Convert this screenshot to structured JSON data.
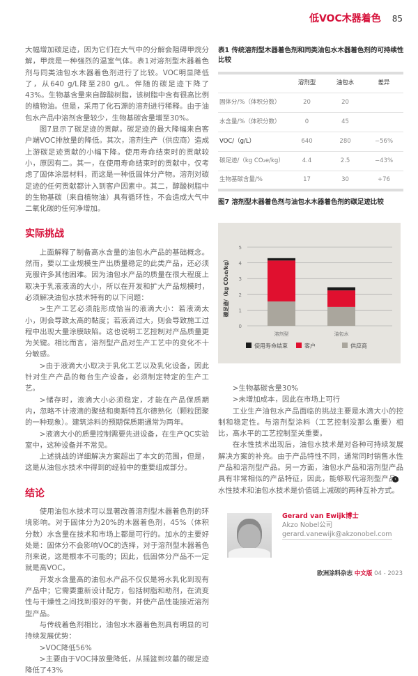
{
  "header": {
    "title": "低VOC木器着色",
    "page": "85"
  },
  "left": {
    "p1": "大幅增加碳足迹，因为它们在大气中的分解会阻碍甲烷分解，甲烷是一种强烈的温室气体。表1对溶剂型木器着色剂与同类油包水木器着色剂进行了比较。VOC明显降低了，从640 g/L降至280 g/L。伴随的碳足迹下降了43%。生物基含量来自醇酸树脂，该树脂中含有很高比例的植物油。但是，采用了化石源的溶剂进行稀释。由于油包水产品中溶剂含量较少，生物基碳含量增至30%。",
    "p2": "图7显示了碳足迹的贡献。碳足迹的最大降幅来自客户端VOC排放量的降低。其次，溶剂生产（供应商）造成上游碳足迹贡献的小幅下降。使用寿命结束时的贡献较小，原因有二。其一，在使用寿命结束时的贡献中，仅考虑了固体涂层材料，而这是一种低固体分产物。溶剂对碳足迹的任何贡献都计入到客户因素中。其二，醇酸树脂中的生物基碳（来自植物油）具有循环性，不会造成大气中二氧化碳的任何净增加。",
    "h_challenge": "实际挑战",
    "p3": "上面解释了制备高水含量的油包水产品的基础概念。然而，要以工业规模生产出质量稳定的此类产品，还必须克服许多其他困难。因为油包水产品的质量在很大程度上取决于乳液液滴的大小，所以在开发和扩大产品规模时，必须解决油包水技术特有的以下问题：",
    "b1": ">生产工艺必须能形成恰当的液滴大小：若液滴太小，则会导致太高的黏度；若液滴过大，则会导致施工过程中出现大量涂膜缺陷。这也说明工艺控制对产品质量更为关键。相比而言，溶剂型产品对生产工艺中的变化不十分敏感。",
    "b2": ">由于液滴大小取决于乳化工艺以及乳化设备，因此针对生产产品的每台生产设备，必须制定特定的生产工艺。",
    "b3": ">储存时，液滴大小必须稳定，才能在产品保质期内，忽略不计液滴的聚结和奥斯特瓦尔德熟化（颗粒团聚的一种现象）。建筑涂料的预期保质期通常为两年。",
    "b4": ">液滴大小的质量控制需要先进设备，在生产QC实验室中，这种设备并不常见。",
    "p4": "上述挑战的详细解决方案超出了本文的范围，但是，这是从油包水技术中得到的经验中的重要组成部分。",
    "h_conclusion": "结论",
    "p5": "使用油包水技术可以显著改善溶剂型木器着色剂的环境影响。对于固体分为20%的木器着色剂，45%（体积分数）水含量在技术和市场上都是可行的。加水的主要好处是：固体分不会影响VOC的选择，对于溶剂型木器着色剂来说，这是根本不可能的；因此，低固体分产品不一定就是高VOC。",
    "p6": "开发水含量高的油包水产品不仅仅是将水乳化到现有产品中；它需要重新设计配方，包括树脂和助剂，在流变性与干燥性之间找到很好的平衡，并使产品性能接近溶剂型产品。",
    "p7": "与传统着色剂相比，油包水木器着色剂具有明显的可持续发展优势：",
    "b5": ">VOC降低56%",
    "b6": ">主要由于VOC排放量降低，从摇篮到坟墓的碳足迹降低了43%"
  },
  "right": {
    "b7": ">生物基碳含量30%",
    "b8": ">未增加成本，因此在市场上可行",
    "p8": "工业生产油包水产品面临的挑战主要是水滴大小的控制和稳定性。与溶剂型涂料（工艺控制没那么重要）相比，高水平的工艺控制至关重要。",
    "p9": "在水性技术出现后，油包水技术是对各种可持续发展解决方案的补充。由于产品特性不同，通常同时销售水性产品和溶剂型产品。另一方面，油包水产品和溶剂型产品具有非常相似的产品特征，因此，能够取代溶剂型产品。水性技术和油包水技术是价值链上减碳的两种互补方式。"
  },
  "table1": {
    "caption": "表1 传统溶剂型木器着色剂和同类油包水木器着色剂的可持续性比较",
    "headers": [
      "",
      "溶剂型",
      "油包水",
      "差异"
    ],
    "rows": [
      [
        "固体分/%（体积分数）",
        "20",
        "20",
        ""
      ],
      [
        "水含量/%（体积分数）",
        "0",
        "45",
        ""
      ],
      [
        "VOC/（g/L）",
        "640",
        "280",
        "−56%"
      ],
      [
        "碳足迹/（kg CO₂e/kg）",
        "4.4",
        "2.5",
        "−43%"
      ],
      [
        "生物基碳含量/%",
        "17",
        "30",
        "+76"
      ]
    ]
  },
  "chart_data": {
    "type": "bar",
    "stacked": true,
    "title": "图7 溶剂型木器着色剂与油包水木器着色剂的碳足迹比较",
    "ylabel": "碳足迹/（kg CO₂e/kg）",
    "ylim": [
      0,
      5
    ],
    "yticks": [
      "0",
      "1",
      "2",
      "3",
      "4",
      "5"
    ],
    "grid": true,
    "legend_position": "bottom",
    "categories": [
      "溶剂型",
      "油包水"
    ],
    "series": [
      {
        "name": "供应商",
        "color": "#aaa69d",
        "values": [
          1.55,
          1.2
        ]
      },
      {
        "name": "客户",
        "color": "#e0102f",
        "values": [
          2.6,
          1.05
        ]
      },
      {
        "name": "使用寿命结束",
        "color": "#1a1a1a",
        "values": [
          0.15,
          0.2
        ]
      }
    ],
    "legend_order": [
      "使用寿命结束",
      "客户",
      "供应商"
    ]
  },
  "author": {
    "name": "Gerard van Ewijk博士",
    "company": "Akzo Nobel公司",
    "email": "gerard.vanewijk@akzonobel.com"
  },
  "footer": {
    "magazine": "欧洲涂料杂志",
    "edition": "中文版",
    "issue": "04 - 2023"
  },
  "colors": {
    "accent": "#d6113a"
  },
  "icons": {
    "end_mark": "end-of-article-icon"
  }
}
